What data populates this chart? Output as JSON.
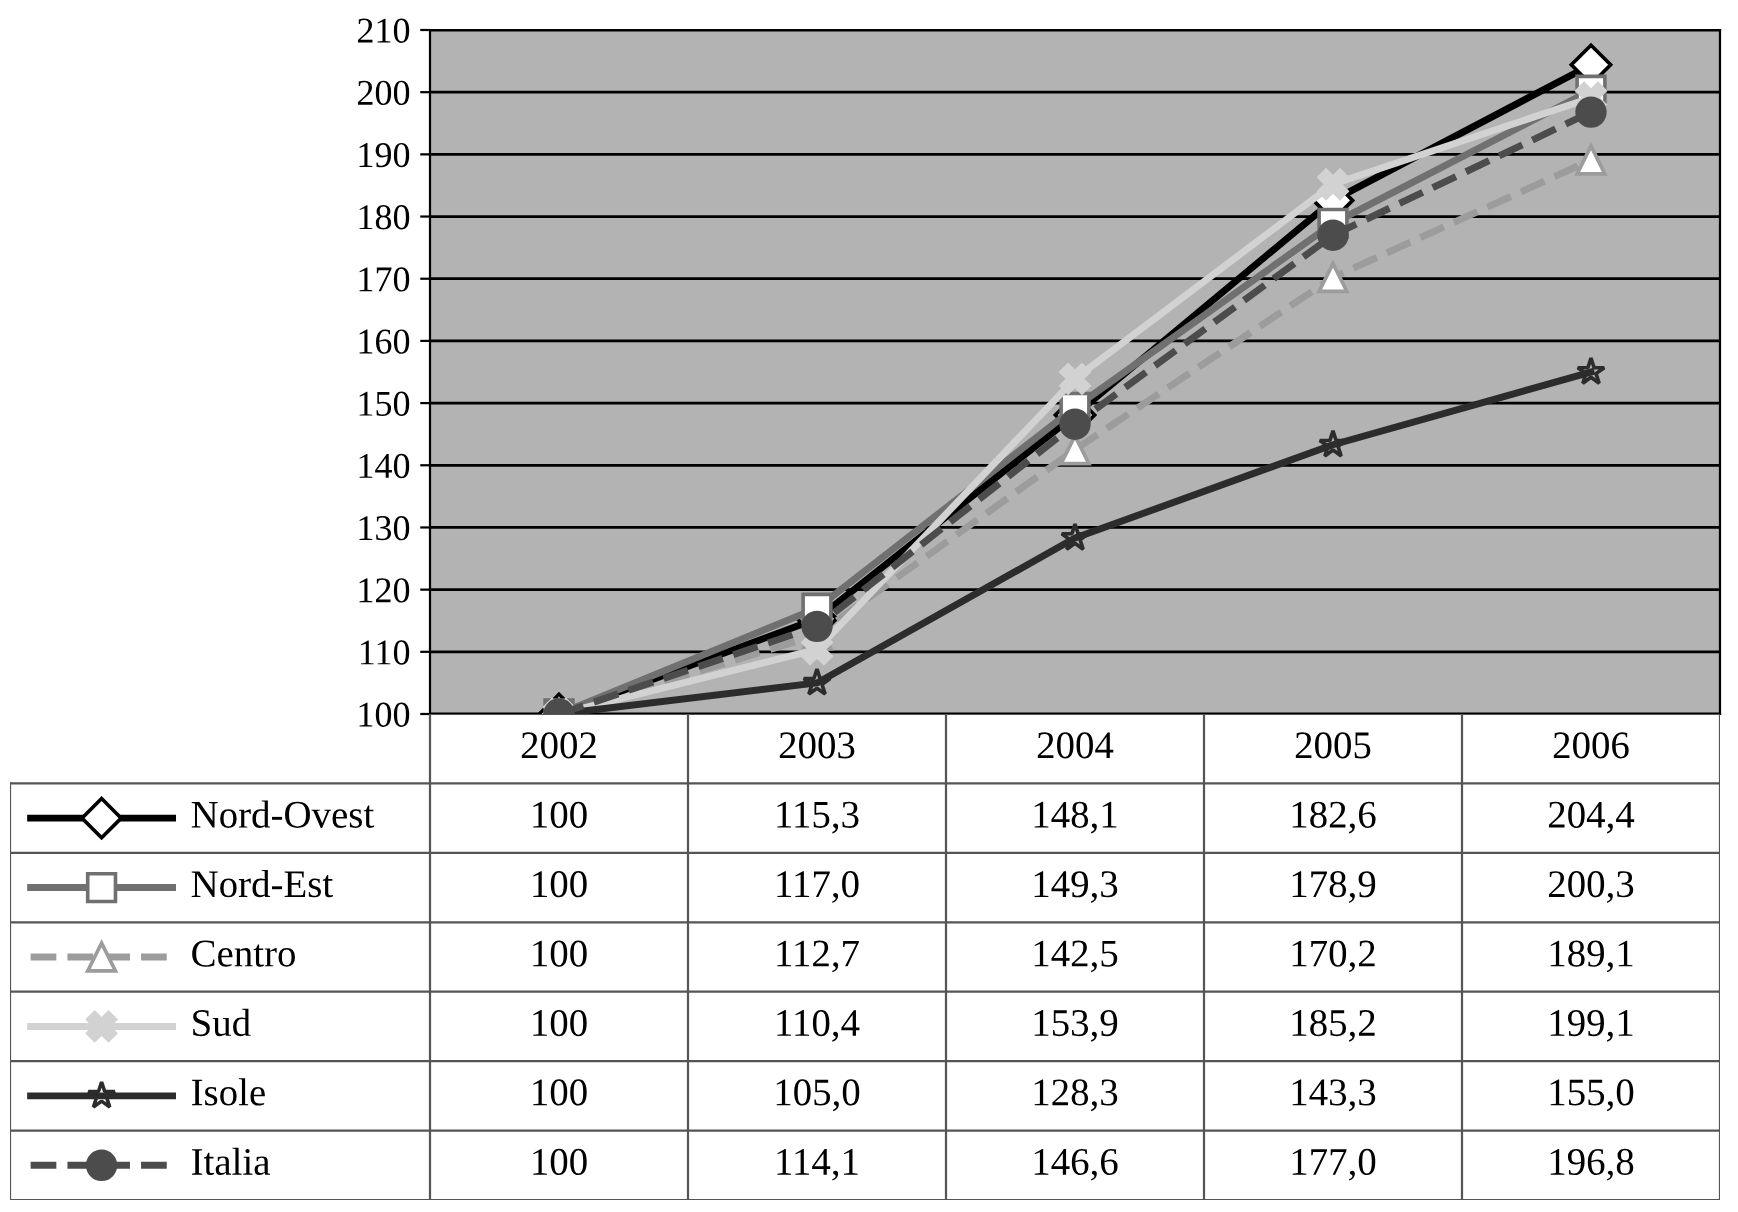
{
  "chart_data": {
    "type": "line",
    "categories": [
      "2002",
      "2003",
      "2004",
      "2005",
      "2006"
    ],
    "ylim": [
      100,
      210
    ],
    "yticks": [
      100,
      110,
      120,
      130,
      140,
      150,
      160,
      170,
      180,
      190,
      200,
      210
    ],
    "grid": "y",
    "legend": "bottom",
    "series": [
      {
        "name": "Nord-Ovest",
        "color": "#000000",
        "marker": "diamond",
        "line_style": "solid",
        "values": [
          100,
          115.3,
          148.1,
          182.6,
          204.4
        ],
        "value_labels": [
          "100",
          "115,3",
          "148,1",
          "182,6",
          "204,4"
        ]
      },
      {
        "name": "Nord-Est",
        "color": "#707070",
        "marker": "square",
        "line_style": "solid",
        "values": [
          100,
          117.0,
          149.3,
          178.9,
          200.3
        ],
        "value_labels": [
          "100",
          "117,0",
          "149,3",
          "178,9",
          "200,3"
        ]
      },
      {
        "name": "Centro",
        "color": "#9c9c9c",
        "marker": "triangle",
        "line_style": "dashed",
        "values": [
          100,
          112.7,
          142.5,
          170.2,
          189.1
        ],
        "value_labels": [
          "100",
          "112,7",
          "142,5",
          "170,2",
          "189,1"
        ]
      },
      {
        "name": "Sud",
        "color": "#d2d2d2",
        "marker": "cross",
        "line_style": "solid",
        "values": [
          100,
          110.4,
          153.9,
          185.2,
          199.1
        ],
        "value_labels": [
          "100",
          "110,4",
          "153,9",
          "185,2",
          "199,1"
        ]
      },
      {
        "name": "Isole",
        "color": "#2c2c2c",
        "marker": "star",
        "line_style": "solid",
        "values": [
          100,
          105.0,
          128.3,
          143.3,
          155.0
        ],
        "value_labels": [
          "100",
          "105,0",
          "128,3",
          "143,3",
          "155,0"
        ]
      },
      {
        "name": "Italia",
        "color": "#4c4c4c",
        "marker": "circle",
        "line_style": "dashed",
        "values": [
          100,
          114.1,
          146.6,
          177.0,
          196.8
        ],
        "value_labels": [
          "100",
          "114,1",
          "146,6",
          "177,0",
          "196,8"
        ]
      }
    ]
  }
}
